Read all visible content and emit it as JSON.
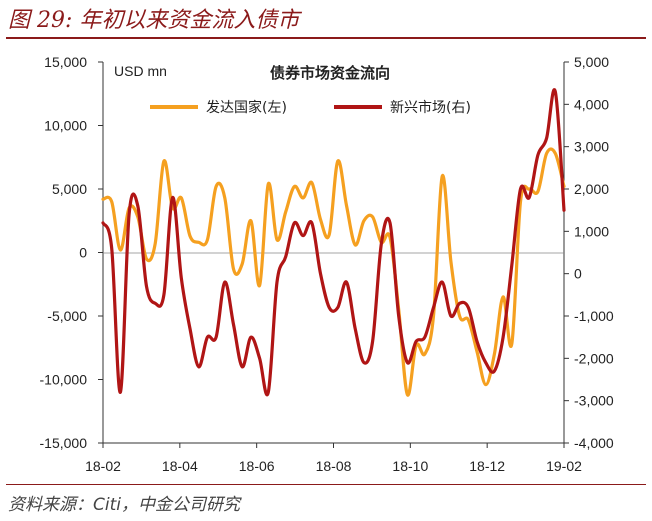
{
  "figure": {
    "title": "图 29: 年初以来资金流入债市",
    "source": "资料来源：Citi，中金公司研究"
  },
  "chart_data": {
    "type": "line",
    "title": "债券市场资金流向",
    "unit_label": "USD mn",
    "x_ticks": [
      "18-02",
      "18-04",
      "18-06",
      "18-08",
      "18-10",
      "18-12",
      "19-02"
    ],
    "x_range": [
      0,
      53
    ],
    "left_axis": {
      "ylim": [
        -15000,
        15000
      ],
      "ticks": [
        "15,000",
        "10,000",
        "5,000",
        "0",
        "-5,000",
        "-10,000",
        "-15,000"
      ]
    },
    "right_axis": {
      "ylim": [
        -4000,
        5000
      ],
      "ticks": [
        "5,000",
        "4,000",
        "3,000",
        "2,000",
        "1,000",
        "0",
        "-1,000",
        "-2,000",
        "-3,000",
        "-4,000"
      ]
    },
    "series": [
      {
        "name": "发达国家(左)",
        "axis": "left",
        "color": "#f5a020",
        "values": [
          4200,
          4000,
          200,
          3500,
          2800,
          -500,
          700,
          7200,
          3500,
          4300,
          1300,
          800,
          1000,
          5200,
          4300,
          -1300,
          -900,
          2500,
          -2600,
          5400,
          1000,
          3200,
          5200,
          4300,
          5500,
          2600,
          1400,
          7200,
          3700,
          600,
          2500,
          2800,
          800,
          1200,
          -4500,
          -11200,
          -7300,
          -8000,
          -5000,
          6000,
          -700,
          -5000,
          -5300,
          -7800,
          -10400,
          -8000,
          -3500,
          -7200,
          4000,
          5000,
          4800,
          7800,
          7800,
          5200
        ]
      },
      {
        "name": "新兴市场(右)",
        "axis": "right",
        "color": "#b01515",
        "values": [
          1200,
          600,
          -2800,
          1400,
          1600,
          -300,
          -700,
          -500,
          1800,
          -100,
          -1300,
          -2200,
          -1500,
          -1500,
          -200,
          -1200,
          -2200,
          -1500,
          -2000,
          -2800,
          -200,
          400,
          1200,
          900,
          1200,
          0,
          -800,
          -800,
          -200,
          -1300,
          -2100,
          -1600,
          700,
          1200,
          -1000,
          -2100,
          -1600,
          -1500,
          -800,
          -200,
          -1000,
          -700,
          -800,
          -1600,
          -2100,
          -2300,
          -1500,
          200,
          2000,
          1800,
          2800,
          3200,
          4300,
          1500
        ]
      }
    ]
  }
}
